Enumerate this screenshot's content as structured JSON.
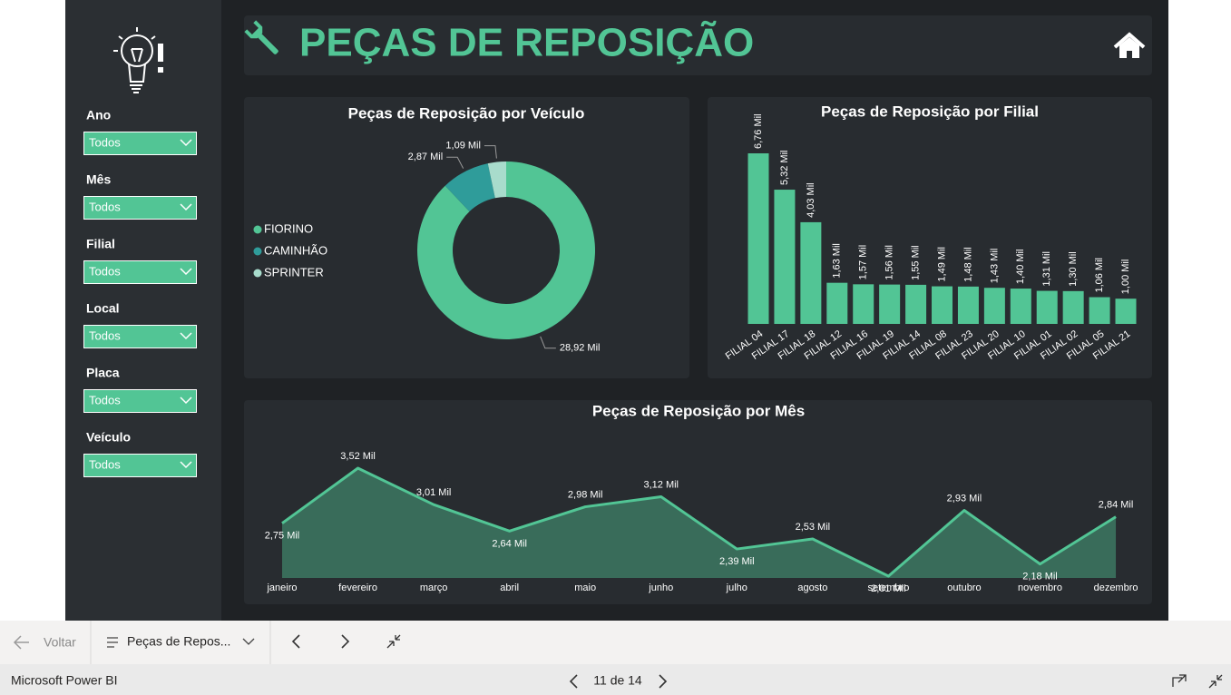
{
  "sidebar": {
    "filters": [
      {
        "label": "Ano",
        "value": "Todos"
      },
      {
        "label": "Mês",
        "value": "Todos"
      },
      {
        "label": "Filial",
        "value": "Todos"
      },
      {
        "label": "Local",
        "value": "Todos"
      },
      {
        "label": "Placa",
        "value": "Todos"
      },
      {
        "label": "Veículo",
        "value": "Todos"
      }
    ]
  },
  "header": {
    "title": "PEÇAS DE REPOSIÇÃO"
  },
  "chart_data": [
    {
      "type": "donut",
      "title": "Peças de Reposição por Veículo",
      "legend": "left",
      "categories": [
        "FIORINO",
        "CAMINHÃO",
        "SPRINTER"
      ],
      "colors": [
        "#52c595",
        "#2f9c9a",
        "#a8dccc"
      ],
      "values": [
        28.92,
        2.87,
        1.09
      ],
      "value_labels": [
        "28,92 Mil",
        "2,87 Mil",
        "1,09 Mil"
      ]
    },
    {
      "type": "bar",
      "title": "Peças de Reposição por Filial",
      "color": "#52c595",
      "categories": [
        "FILIAL 04",
        "FILIAL 17",
        "FILIAL 18",
        "FILIAL 12",
        "FILIAL 16",
        "FILIAL 19",
        "FILIAL 14",
        "FILIAL 08",
        "FILIAL 23",
        "FILIAL 20",
        "FILIAL 10",
        "FILIAL 01",
        "FILIAL 02",
        "FILIAL 05",
        "FILIAL 21"
      ],
      "values": [
        6.76,
        5.32,
        4.03,
        1.63,
        1.57,
        1.56,
        1.55,
        1.49,
        1.48,
        1.43,
        1.4,
        1.31,
        1.3,
        1.06,
        1.0
      ],
      "value_labels": [
        "6,76 Mil",
        "5,32 Mil",
        "4,03 Mil",
        "1,63 Mil",
        "1,57 Mil",
        "1,56 Mil",
        "1,55 Mil",
        "1,49 Mil",
        "1,48 Mil",
        "1,43 Mil",
        "1,40 Mil",
        "1,31 Mil",
        "1,30 Mil",
        "1,06 Mil",
        "1,00 Mil"
      ]
    },
    {
      "type": "area",
      "title": "Peças de Reposição por Mês",
      "color": "#52c595",
      "categories": [
        "janeiro",
        "fevereiro",
        "março",
        "abril",
        "maio",
        "junho",
        "julho",
        "agosto",
        "setembro",
        "outubro",
        "novembro",
        "dezembro"
      ],
      "values": [
        2.75,
        3.52,
        3.01,
        2.64,
        2.98,
        3.12,
        2.39,
        2.53,
        2.01,
        2.93,
        2.18,
        2.84
      ],
      "value_labels": [
        "2,75 Mil",
        "3,52 Mil",
        "3,01 Mil",
        "2,64 Mil",
        "2,98 Mil",
        "3,12 Mil",
        "2,39 Mil",
        "2,53 Mil",
        "2,01 Mil",
        "2,93 Mil",
        "2,18 Mil",
        "2,84 Mil"
      ]
    }
  ],
  "navigation": {
    "back": "Voltar",
    "page": "Peças de Repos...",
    "app": "Microsoft Power BI",
    "page_counter": "11 de 14"
  }
}
